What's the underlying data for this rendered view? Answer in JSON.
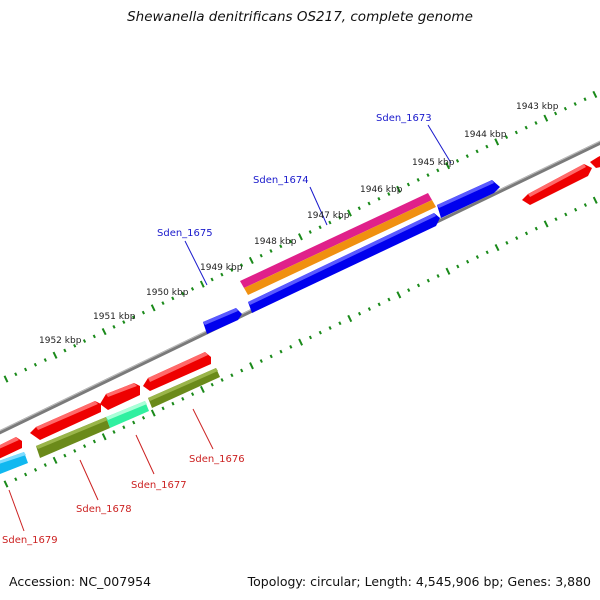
{
  "title": "Shewanella denitrificans OS217, complete genome",
  "footer": {
    "accession": "Accession: NC_007954",
    "topology": "Topology: circular; Length: 4,545,906 bp; Genes: 3,880"
  },
  "scale_labels": [
    "1943 kbp",
    "1944 kbp",
    "1945 kbp",
    "1946 kbp",
    "1947 kbp",
    "1948 kbp",
    "1949 kbp",
    "1950 kbp",
    "1951 kbp",
    "1952 kbp"
  ],
  "genes_forward": [
    {
      "name": "Sden_1673",
      "color": "#0000ee",
      "labeled": true
    },
    {
      "name": "Sden_1674",
      "color": "#0000ee",
      "labeled": true
    },
    {
      "name": "Sden_1675",
      "color": "#0000ee",
      "labeled": true
    }
  ],
  "genes_reverse": [
    {
      "name": "Sden_1676",
      "color": "#ee0000",
      "labeled": true
    },
    {
      "name": "Sden_1677",
      "color": "#ee0000",
      "labeled": true
    },
    {
      "name": "Sden_1678",
      "color": "#ee0000",
      "labeled": true
    },
    {
      "name": "Sden_1679",
      "color": "#ee0000",
      "labeled": true
    }
  ],
  "colors": {
    "backbone": "#808080",
    "scale_ticks": "#1a8a1a",
    "cds_forward": "#0000ee",
    "cds_reverse": "#ee0000",
    "feature_magenta": "#e0208a",
    "feature_orange": "#f09010",
    "feature_olive": "#6b8a1a",
    "feature_mint": "#30f0a0",
    "feature_cyan": "#10b8f0"
  }
}
